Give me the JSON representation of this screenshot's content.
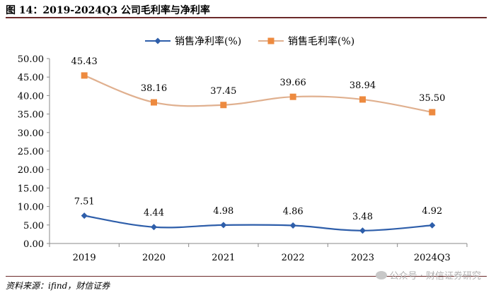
{
  "figure_title": "图 14：2019-2024Q3 公司毛利率与净利率",
  "source": "资料来源：ifind，财信证券",
  "watermark": "公众号 · 财信证券研究",
  "colors": {
    "net": "#2e5eaa",
    "gross": "#ed8a3f",
    "gross_line": "#e0b08f",
    "title_rule": "#6b2a2a"
  },
  "chart_data": {
    "type": "line",
    "title": "",
    "xlabel": "",
    "ylabel": "",
    "categories": [
      "2019",
      "2020",
      "2021",
      "2022",
      "2023",
      "2024Q3"
    ],
    "ylim": [
      0,
      50
    ],
    "yticks": [
      "0.00",
      "5.00",
      "10.00",
      "15.00",
      "20.00",
      "25.00",
      "30.00",
      "35.00",
      "40.00",
      "45.00",
      "50.00"
    ],
    "legend_position": "top-center",
    "series": [
      {
        "name": "销售净利率(%)",
        "marker": "diamond",
        "values": [
          7.51,
          4.44,
          4.98,
          4.86,
          3.48,
          4.92
        ],
        "labels": [
          "7.51",
          "4.44",
          "4.98",
          "4.86",
          "3.48",
          "4.92"
        ]
      },
      {
        "name": "销售毛利率(%)",
        "marker": "square",
        "values": [
          45.43,
          38.16,
          37.45,
          39.66,
          38.94,
          35.5
        ],
        "labels": [
          "45.43",
          "38.16",
          "37.45",
          "39.66",
          "38.94",
          "35.50"
        ]
      }
    ]
  }
}
